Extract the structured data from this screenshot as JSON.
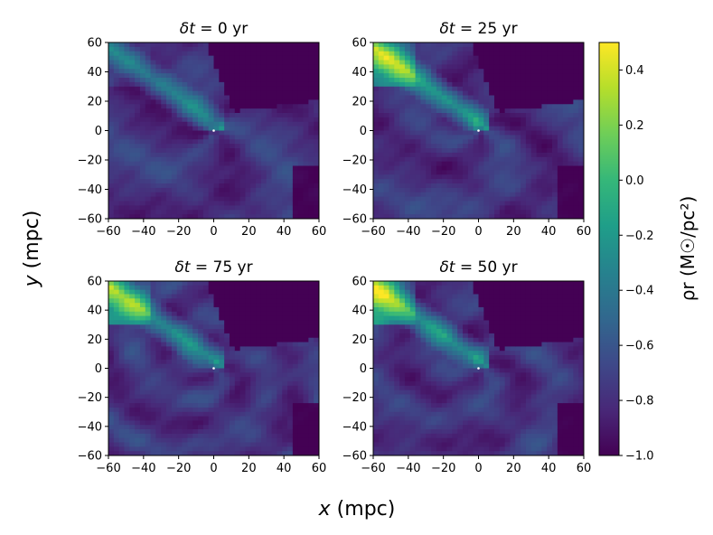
{
  "figure": {
    "xlabel_var": "x",
    "xlabel_unit": " (mpc)",
    "ylabel_var": "y",
    "ylabel_unit": " (mpc)"
  },
  "colorbar": {
    "label_text": "ρr (M☉/pc²)",
    "range": [
      -1.0,
      0.5
    ],
    "ticks": [
      -1.0,
      -0.8,
      -0.6,
      -0.4,
      -0.2,
      0.0,
      0.2,
      0.4
    ],
    "tick_labels": [
      "−1.0",
      "−0.8",
      "−0.6",
      "−0.4",
      "−0.2",
      "0.0",
      "0.2",
      "0.4"
    ],
    "colors": [
      "#440154",
      "#482878",
      "#3e4989",
      "#31688e",
      "#26828e",
      "#1f9e89",
      "#35b779",
      "#6ece58",
      "#b5de2b",
      "#fde725"
    ]
  },
  "chart_data": [
    {
      "type": "heatmap",
      "panel": "top-left",
      "title_prefix": "δt",
      "title_suffix": " = 0 yr",
      "dt_yr": 0,
      "xlim": [
        -60,
        60
      ],
      "ylim": [
        -60,
        60
      ],
      "xticks": [
        -60,
        -40,
        -20,
        0,
        20,
        40,
        60
      ],
      "yticks": [
        -60,
        -40,
        -20,
        0,
        20,
        40,
        60
      ],
      "xtick_labels": [
        "−60",
        "−40",
        "−20",
        "0",
        "20",
        "40",
        "60"
      ],
      "ytick_labels": [
        "−60",
        "−40",
        "−20",
        "0",
        "20",
        "40",
        "60"
      ]
    },
    {
      "type": "heatmap",
      "panel": "top-right",
      "title_prefix": "δt",
      "title_suffix": " = 25 yr",
      "dt_yr": 25,
      "xlim": [
        -60,
        60
      ],
      "ylim": [
        -60,
        60
      ],
      "xticks": [
        -60,
        -40,
        -20,
        0,
        20,
        40,
        60
      ],
      "yticks": [
        -60,
        -40,
        -20,
        0,
        20,
        40,
        60
      ],
      "xtick_labels": [
        "−60",
        "−40",
        "−20",
        "0",
        "20",
        "40",
        "60"
      ],
      "ytick_labels": [
        "−60",
        "−40",
        "−20",
        "0",
        "20",
        "40",
        "60"
      ]
    },
    {
      "type": "heatmap",
      "panel": "bottom-left",
      "title_prefix": "δt",
      "title_suffix": " = 75 yr",
      "dt_yr": 75,
      "xlim": [
        -60,
        60
      ],
      "ylim": [
        -60,
        60
      ],
      "xticks": [
        -60,
        -40,
        -20,
        0,
        20,
        40,
        60
      ],
      "yticks": [
        -60,
        -40,
        -20,
        0,
        20,
        40,
        60
      ],
      "xtick_labels": [
        "−60",
        "−40",
        "−20",
        "0",
        "20",
        "40",
        "60"
      ],
      "ytick_labels": [
        "−60",
        "−40",
        "−20",
        "0",
        "20",
        "40",
        "60"
      ]
    },
    {
      "type": "heatmap",
      "panel": "bottom-right",
      "title_prefix": "δt",
      "title_suffix": " = 50 yr",
      "dt_yr": 50,
      "xlim": [
        -60,
        60
      ],
      "ylim": [
        -60,
        60
      ],
      "xticks": [
        -60,
        -40,
        -20,
        0,
        20,
        40,
        60
      ],
      "yticks": [
        -60,
        -40,
        -20,
        0,
        20,
        40,
        60
      ],
      "xtick_labels": [
        "−60",
        "−40",
        "−20",
        "0",
        "20",
        "40",
        "60"
      ],
      "ytick_labels": [
        "−60",
        "−40",
        "−20",
        "0",
        "20",
        "40",
        "60"
      ]
    }
  ]
}
